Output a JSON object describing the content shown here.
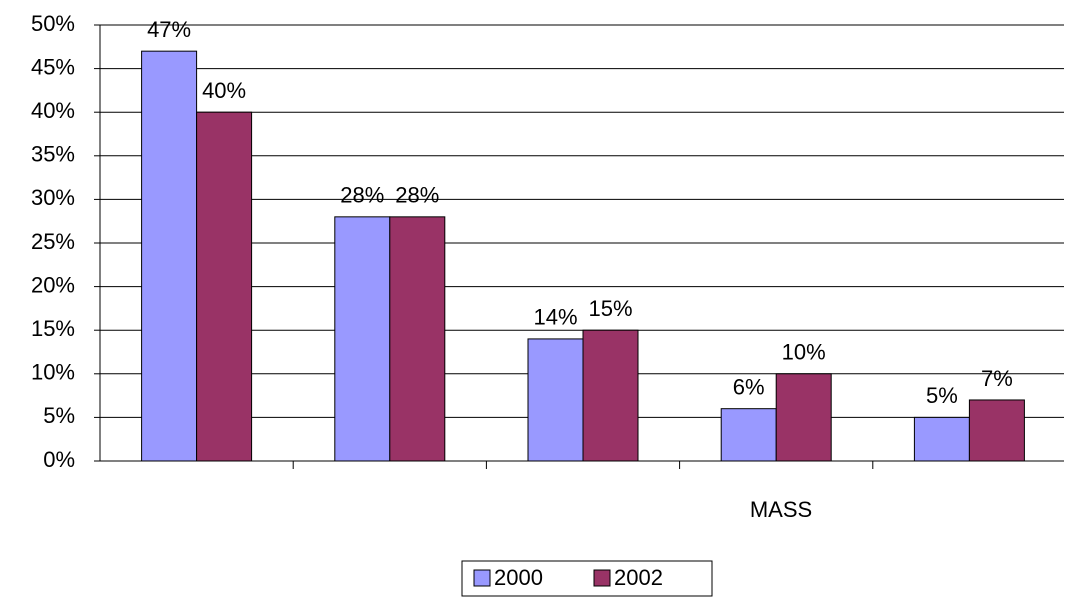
{
  "chart_data": {
    "type": "bar",
    "xlabel": "MASS",
    "categories": [
      null,
      null,
      null,
      null,
      null
    ],
    "series": [
      {
        "name": "2000",
        "color": "#9999ff",
        "values": [
          47,
          28,
          14,
          6,
          5
        ],
        "value_labels": [
          "47%",
          "28%",
          "14%",
          "6%",
          "5%"
        ]
      },
      {
        "name": "2002",
        "color": "#993366",
        "values": [
          40,
          28,
          15,
          10,
          7
        ],
        "value_labels": [
          "40%",
          "28%",
          "15%",
          "10%",
          "7%"
        ]
      }
    ],
    "ylim": [
      0,
      50
    ],
    "yticks": [
      {
        "value": 0,
        "label": "0%"
      },
      {
        "value": 5,
        "label": "5%"
      },
      {
        "value": 10,
        "label": "10%"
      },
      {
        "value": 15,
        "label": "15%"
      },
      {
        "value": 20,
        "label": "20%"
      },
      {
        "value": 25,
        "label": "25%"
      },
      {
        "value": 30,
        "label": "30%"
      },
      {
        "value": 35,
        "label": "35%"
      },
      {
        "value": 40,
        "label": "40%"
      },
      {
        "value": 45,
        "label": "45%"
      },
      {
        "value": 50,
        "label": "50%"
      }
    ],
    "grid": true,
    "legend": "bottom"
  }
}
